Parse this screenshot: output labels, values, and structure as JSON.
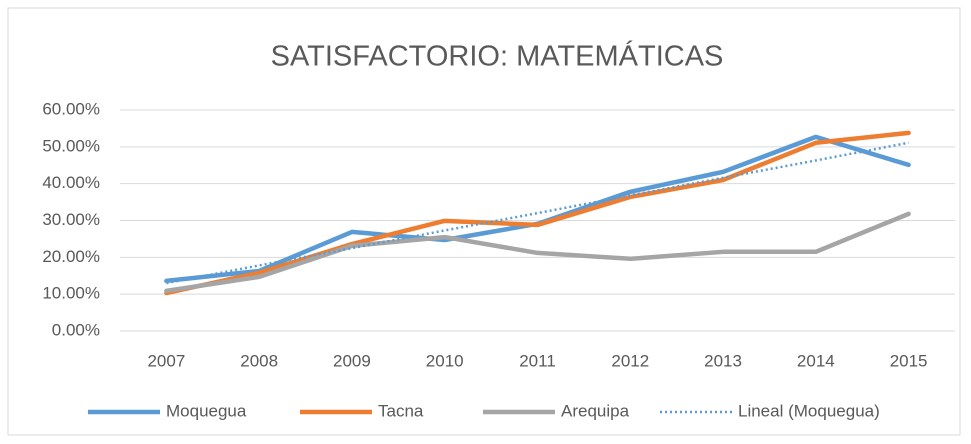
{
  "chart_data": {
    "type": "line",
    "title": "SATISFACTORIO: MATEMÁTICAS",
    "categories": [
      "2007",
      "2008",
      "2009",
      "2010",
      "2011",
      "2012",
      "2013",
      "2014",
      "2015"
    ],
    "series": [
      {
        "name": "Moquegua",
        "color": "#5b9bd5",
        "values": [
          13.6,
          16.3,
          26.9,
          24.7,
          29.1,
          37.8,
          43.2,
          52.7,
          45.1
        ]
      },
      {
        "name": "Tacna",
        "color": "#ed7d31",
        "values": [
          10.3,
          15.8,
          23.6,
          29.9,
          28.8,
          36.4,
          41.0,
          51.1,
          53.8
        ]
      },
      {
        "name": "Arequipa",
        "color": "#a5a5a5",
        "values": [
          10.9,
          14.7,
          23.1,
          25.5,
          21.2,
          19.6,
          21.5,
          21.5,
          31.8
        ]
      },
      {
        "name": "Lineal (Moquegua)",
        "color": "#5b9bd5",
        "style": "dotted",
        "values": [
          13.0,
          17.8,
          22.5,
          27.3,
          32.0,
          36.8,
          41.6,
          46.3,
          51.1
        ]
      }
    ],
    "ylim": [
      0,
      60
    ],
    "yticks": [
      {
        "value": 0,
        "label": "0.00%"
      },
      {
        "value": 10,
        "label": "10.00%"
      },
      {
        "value": 20,
        "label": "20.00%"
      },
      {
        "value": 30,
        "label": "30.00%"
      },
      {
        "value": 40,
        "label": "40.00%"
      },
      {
        "value": 50,
        "label": "50.00%"
      },
      {
        "value": 60,
        "label": "60.00%"
      }
    ],
    "grid": true,
    "legend": "bottom"
  }
}
